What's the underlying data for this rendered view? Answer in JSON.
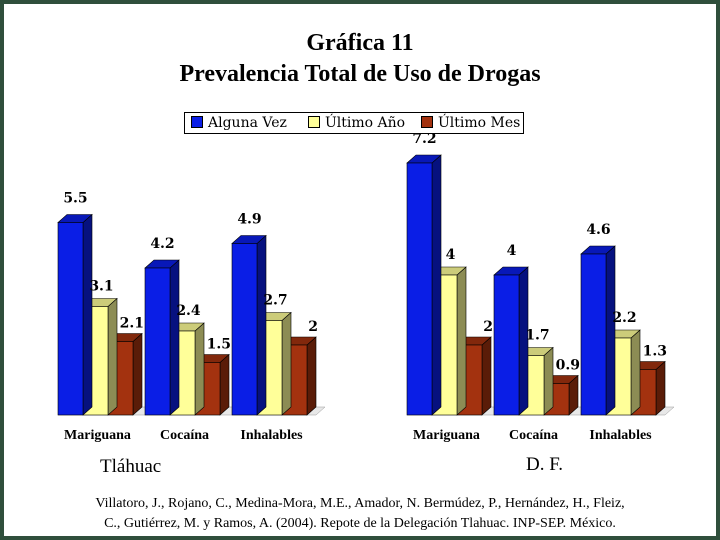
{
  "title_line1": "Gráfica 11",
  "title_line2": "Prevalencia Total de Uso de Drogas",
  "colors": {
    "alguna_vez": "#0a1ee6",
    "ultimo_ano": "#ffff99",
    "ultimo_mes": "#a3320f",
    "frame": "#2f4f3c"
  },
  "citation_line1": "Villatoro, J., Rojano, C., Medina-Mora, M.E., Amador, N. Bermúdez, P., Hernández, H., Fleiz,",
  "citation_line2": "C., Gutiérrez, M. y Ramos, A. (2004). Repote de la Delegación Tlahuac. INP-SEP. México.",
  "chart_data": [
    {
      "type": "bar",
      "panel_label": "Tláhuac",
      "categories": [
        "Mariguana",
        "Cocaína",
        "Inhalables"
      ],
      "series": [
        {
          "name": "Alguna Vez",
          "values": [
            5.5,
            4.2,
            4.9
          ],
          "labels": [
            "5.5",
            "4.2",
            "4.9"
          ]
        },
        {
          "name": "Último Año",
          "values": [
            3.1,
            2.4,
            2.7
          ],
          "labels": [
            "3.1",
            "2.4",
            "2.7"
          ]
        },
        {
          "name": "Último Mes",
          "values": [
            2.1,
            1.5,
            2.0
          ],
          "labels": [
            "2.1",
            "1.5",
            "2"
          ]
        }
      ],
      "ylim": [
        0,
        7.2
      ],
      "grid": false,
      "legend": "top"
    },
    {
      "type": "bar",
      "panel_label": "D. F.",
      "categories": [
        "Mariguana",
        "Cocaína",
        "Inhalables"
      ],
      "series": [
        {
          "name": "Alguna Vez",
          "values": [
            7.2,
            4.0,
            4.6
          ],
          "labels": [
            "7.2",
            "4",
            "4.6"
          ]
        },
        {
          "name": "Último Año",
          "values": [
            4.0,
            1.7,
            2.2
          ],
          "labels": [
            "4",
            "1.7",
            "2.2"
          ]
        },
        {
          "name": "Último Mes",
          "values": [
            2.0,
            0.9,
            1.3
          ],
          "labels": [
            "2",
            "0.9",
            "1.3"
          ]
        }
      ],
      "ylim": [
        0,
        7.2
      ],
      "grid": false,
      "legend": "top"
    }
  ]
}
